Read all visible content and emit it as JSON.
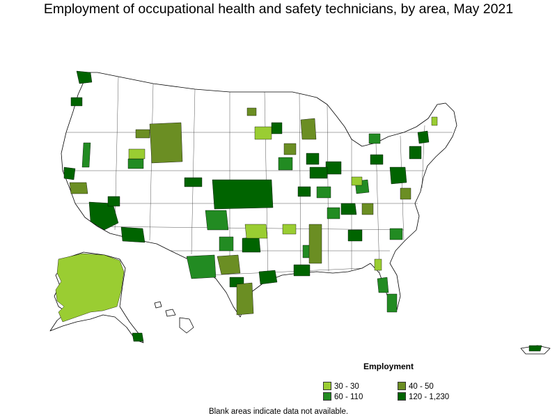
{
  "title": "Employment of occupational health and safety technicians, by area, May 2021",
  "legend": {
    "title": "Employment",
    "items": [
      {
        "label": "30 - 30",
        "color": "#9acd32"
      },
      {
        "label": "40 - 50",
        "color": "#6b8e23"
      },
      {
        "label": "60 - 110",
        "color": "#228b22"
      },
      {
        "label": "120 - 1,230",
        "color": "#006400"
      }
    ]
  },
  "footnote": "Blank areas indicate data not available."
}
